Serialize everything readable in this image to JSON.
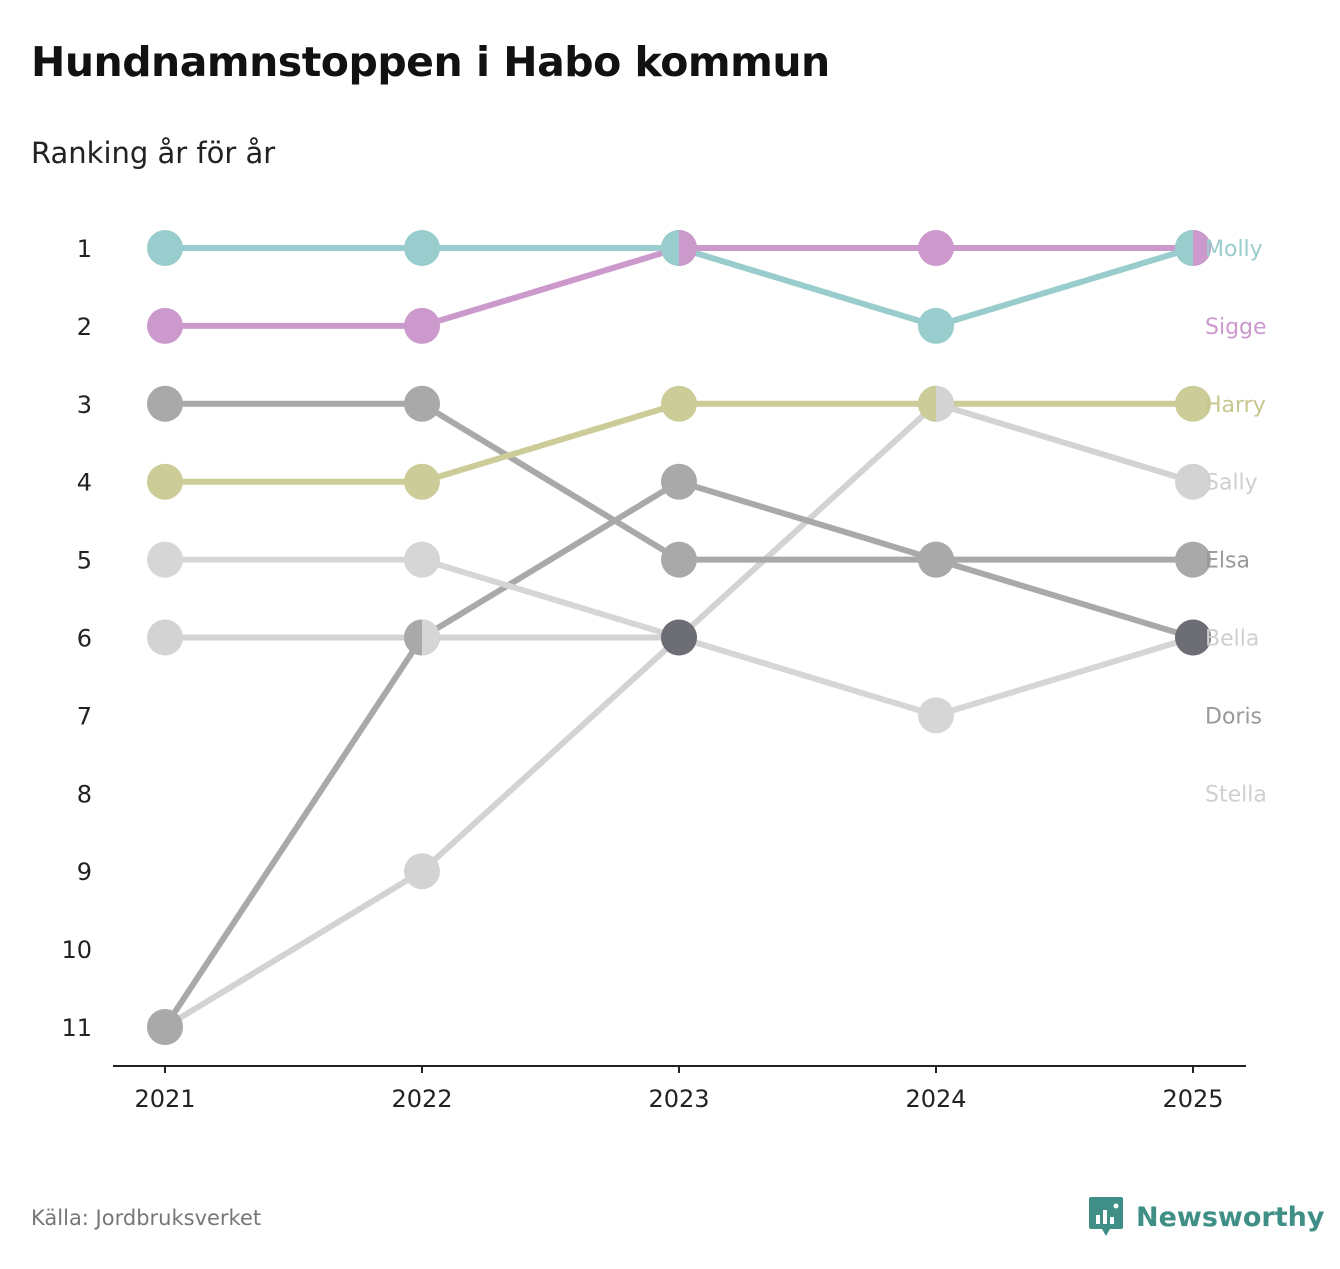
{
  "title": "Hundnamnstoppen i Habo kommun",
  "subtitle": "Ranking år för år",
  "source": "Källa: Jordbruksverket",
  "brand": {
    "name": "Newsworthy",
    "icon": "bar-chart-speech-bubble-icon",
    "color": "#3f8f86"
  },
  "chart_data": {
    "type": "line",
    "title": "Hundnamnstoppen i Habo kommun",
    "subtitle": "Ranking år för år",
    "x": [
      "2021",
      "2022",
      "2023",
      "2024",
      "2025"
    ],
    "y_ticks": [
      "1",
      "2",
      "3",
      "4",
      "5",
      "6",
      "7",
      "8",
      "9",
      "10",
      "11"
    ],
    "ylim": [
      1,
      11
    ],
    "y_reversed": true,
    "grid": false,
    "legend": "direct labels at right",
    "series": [
      {
        "name": "Stella",
        "values": [
          11,
          9,
          6,
          3,
          4
        ],
        "color": "#d3d3d3"
      },
      {
        "name": "Doris",
        "values": [
          11,
          6,
          4,
          5,
          6
        ],
        "color": "#a9a9a9"
      },
      {
        "name": "Bella",
        "values": [
          5,
          5,
          6,
          7,
          6
        ],
        "color": "#d6d6d6"
      },
      {
        "name": "Elsa",
        "values": [
          3,
          3,
          5,
          5,
          5
        ],
        "color": "#a9a9aa"
      },
      {
        "name": "Sally",
        "values": [
          6,
          6,
          6,
          null,
          null
        ],
        "color": "#d3d3d3"
      },
      {
        "name": "Harry",
        "values": [
          4,
          4,
          3,
          3,
          3
        ],
        "color": "#cccc99"
      },
      {
        "name": "Sigge",
        "values": [
          2,
          2,
          1,
          1,
          1
        ],
        "color": "#cc99cc"
      },
      {
        "name": "Molly",
        "values": [
          1,
          1,
          1,
          2,
          1
        ],
        "color": "#99cccc"
      }
    ],
    "right_labels": [
      {
        "text": "Molly",
        "rank": 1,
        "color": "#99cccc"
      },
      {
        "text": "Sigge",
        "rank": 2,
        "color": "#cc99cc"
      },
      {
        "text": "Harry",
        "rank": 3,
        "color": "#c7c78f"
      },
      {
        "text": "Sally",
        "rank": 4,
        "color": "#cfcfcf"
      },
      {
        "text": "Elsa",
        "rank": 5,
        "color": "#999999"
      },
      {
        "text": "Bella",
        "rank": 6,
        "color": "#cfcfcf"
      },
      {
        "text": "Doris",
        "rank": 7,
        "color": "#999999"
      },
      {
        "text": "Stella",
        "rank": 8,
        "color": "#cfcfcf"
      }
    ],
    "highlight_point": {
      "x": "2023",
      "rank": 6,
      "color": "#6d6d75"
    },
    "highlight_point_2": {
      "x": "2025",
      "rank": 6,
      "color": "#6d6d75"
    }
  }
}
